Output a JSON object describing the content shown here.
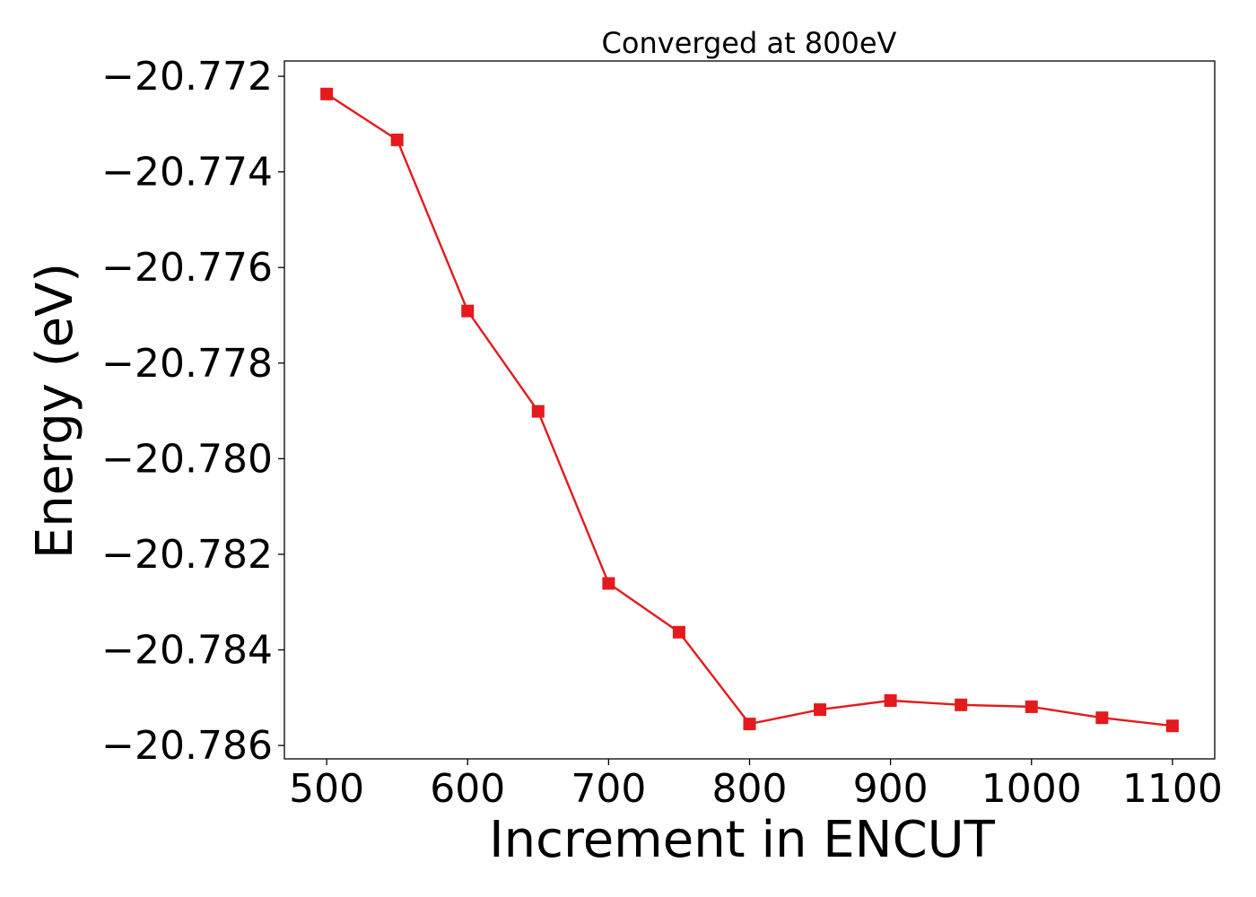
{
  "chart_data": {
    "type": "line",
    "title": "Converged at 800eV",
    "xlabel": "Increment in ENCUT",
    "ylabel": "Energy (eV)",
    "x": [
      500,
      550,
      600,
      650,
      700,
      750,
      800,
      850,
      900,
      950,
      1000,
      1050,
      1100
    ],
    "series": [
      {
        "values": [
          -20.77237,
          -20.77333,
          -20.77691,
          -20.77901,
          -20.78261,
          -20.78363,
          -20.78555,
          -20.78525,
          -20.78506,
          -20.78515,
          -20.78519,
          -20.78542,
          -20.78559
        ],
        "color": "#e41a1c",
        "marker": "square"
      }
    ],
    "xticks": [
      500,
      600,
      700,
      800,
      900,
      1000,
      1100
    ],
    "yticks": [
      -20.772,
      -20.774,
      -20.776,
      -20.778,
      -20.78,
      -20.782,
      -20.784,
      -20.786
    ],
    "ytick_labels": [
      "−20.772",
      "−20.774",
      "−20.776",
      "−20.778",
      "−20.780",
      "−20.782",
      "−20.784",
      "−20.786"
    ],
    "xlim": [
      470,
      1130
    ],
    "ylim": [
      -20.78628,
      -20.77168
    ],
    "grid": false,
    "legend": false
  }
}
